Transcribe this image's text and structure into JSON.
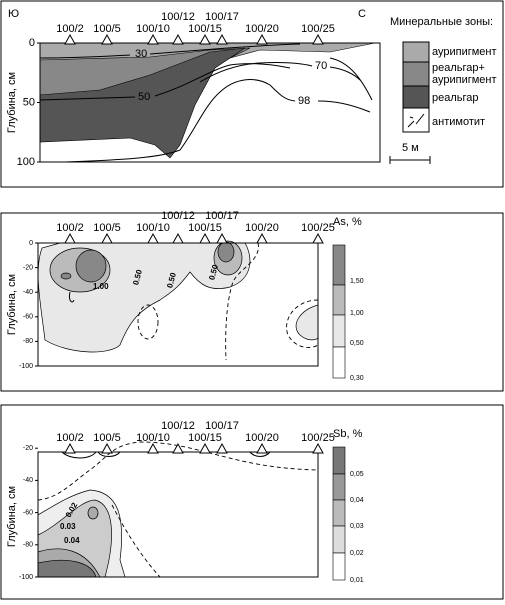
{
  "panel1": {
    "south": "Ю",
    "north": "С",
    "y_label": "Глубина, см",
    "stations": [
      "100/2",
      "100/5",
      "100/10",
      "100/12",
      "100/15",
      "100/17",
      "100/20",
      "100/25"
    ],
    "yticks": [
      0,
      50,
      100
    ],
    "contour_labels": [
      "30",
      "50",
      "70",
      "98"
    ],
    "legend": {
      "title": "Минеральные зоны:",
      "items": [
        [
          "аурипигмент"
        ],
        [
          "реальгар+",
          "аурипигмент"
        ],
        [
          "реальгар"
        ],
        [
          "антимотит"
        ]
      ]
    },
    "scale": "5 м"
  },
  "panel2": {
    "title": "As, %",
    "y_label": "Глубина, см",
    "stations": [
      "100/2",
      "100/5",
      "100/10",
      "100/12",
      "100/15",
      "100/17",
      "100/20",
      "100/25"
    ],
    "yticks": [
      0,
      -20,
      -40,
      -60,
      -80,
      -100
    ],
    "colorbar": [
      "1,50",
      "1,00",
      "0,50",
      "0,30"
    ],
    "contour_labels": [
      "1.00",
      "0.50",
      "0.50",
      "0.50"
    ]
  },
  "panel3": {
    "title": "Sb, %",
    "y_label": "Глубина, см",
    "stations": [
      "100/2",
      "100/5",
      "100/10",
      "100/12",
      "100/15",
      "100/17",
      "100/20",
      "100/25"
    ],
    "yticks": [
      -20,
      -40,
      -60,
      -80,
      -100
    ],
    "colorbar": [
      "0,05",
      "0,04",
      "0,03",
      "0,02",
      "0,01"
    ],
    "contour_labels": [
      "0.02",
      "0.03",
      "0.04"
    ]
  }
}
